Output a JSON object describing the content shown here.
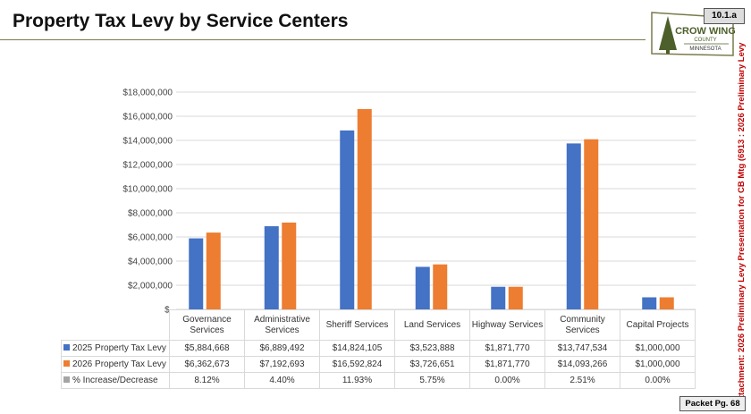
{
  "header": {
    "title": "Property Tax Levy by Service Centers",
    "badge": "10.1.a"
  },
  "logo": {
    "text": "CROW WING COUNTY MINNESOTA"
  },
  "side_note": "Attachment: 2026 Preliminary Levy Presentation for CB Mtg  (6913 : 2026 Preliminary Levy",
  "footer": {
    "packet": "Packet Pg. 68"
  },
  "chart_data": {
    "type": "bar",
    "categories": [
      "Governance Services",
      "Administrative Services",
      "Sheriff Services",
      "Land Services",
      "Highway Services",
      "Community Services",
      "Capital Projects"
    ],
    "series": [
      {
        "name": "2025 Property Tax Levy",
        "color": "#4472c4",
        "values": [
          5884668,
          6889492,
          14824105,
          3523888,
          1871770,
          13747534,
          1000000
        ],
        "labels": [
          "$5,884,668",
          "$6,889,492",
          "$14,824,105",
          "$3,523,888",
          "$1,871,770",
          "$13,747,534",
          "$1,000,000"
        ]
      },
      {
        "name": "2026 Property Tax Levy",
        "color": "#ed7d31",
        "values": [
          6362673,
          7192693,
          16592824,
          3726651,
          1871770,
          14093266,
          1000000
        ],
        "labels": [
          "$6,362,673",
          "$7,192,693",
          "$16,592,824",
          "$3,726,651",
          "$1,871,770",
          "$14,093,266",
          "$1,000,000"
        ]
      },
      {
        "name": "% Increase/Decrease",
        "color": "#a5a5a5",
        "labels": [
          "8.12%",
          "4.40%",
          "11.93%",
          "5.75%",
          "0.00%",
          "2.51%",
          "0.00%"
        ]
      }
    ],
    "ylim": [
      0,
      18000000
    ],
    "yticks": [
      "$-",
      "$2,000,000",
      "$4,000,000",
      "$6,000,000",
      "$8,000,000",
      "$10,000,000",
      "$12,000,000",
      "$14,000,000",
      "$16,000,000",
      "$18,000,000"
    ],
    "grid": true,
    "legend": "data-table"
  }
}
